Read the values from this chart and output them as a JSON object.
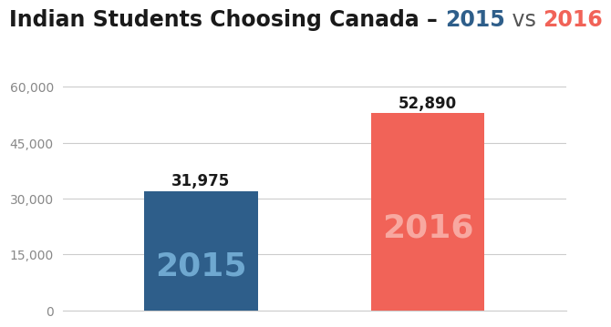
{
  "categories": [
    "2015",
    "2016"
  ],
  "values": [
    31975,
    52890
  ],
  "bar_colors": [
    "#2e5e8a",
    "#f16358"
  ],
  "label_colors_inside": [
    "#6fa8d0",
    "#f8a8a0"
  ],
  "value_labels": [
    "31,975",
    "52,890"
  ],
  "ylim": [
    0,
    65000
  ],
  "yticks": [
    0,
    15000,
    30000,
    45000,
    60000
  ],
  "ytick_labels": [
    "0",
    "15,000",
    "30,000",
    "45,000",
    "60,000"
  ],
  "title_parts": [
    {
      "text": "Indian Students Choosing Canada – ",
      "color": "#1a1a1a",
      "weight": "bold"
    },
    {
      "text": "2015",
      "color": "#2e5e8a",
      "weight": "bold"
    },
    {
      "text": " vs ",
      "color": "#555555",
      "weight": "normal"
    },
    {
      "text": "2016",
      "color": "#f16358",
      "weight": "bold"
    }
  ],
  "background_color": "#ffffff",
  "grid_color": "#cccccc",
  "title_fontsize": 17,
  "bar_label_fontsize": 12,
  "inside_label_fontsize": 26,
  "bar_width": 0.18,
  "x_positions": [
    0.32,
    0.68
  ]
}
